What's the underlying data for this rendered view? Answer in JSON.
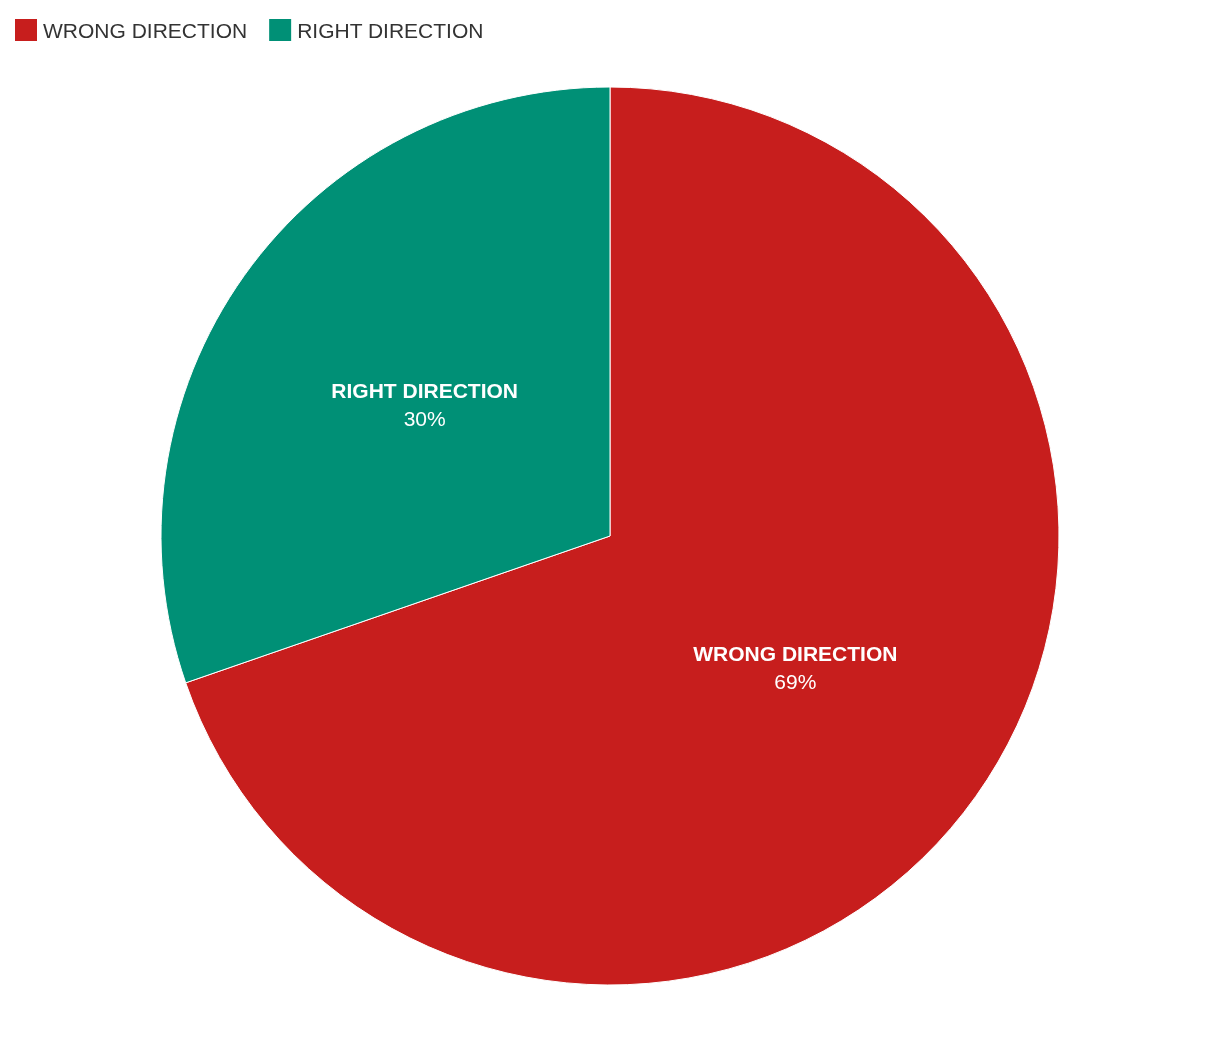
{
  "chart_data": {
    "type": "pie",
    "categories": [
      "WRONG DIRECTION",
      "RIGHT DIRECTION"
    ],
    "values": [
      69,
      30
    ],
    "value_labels": [
      "69%",
      "30%"
    ],
    "colors": [
      "#c71e1d",
      "#009076"
    ],
    "legend": "top left"
  }
}
